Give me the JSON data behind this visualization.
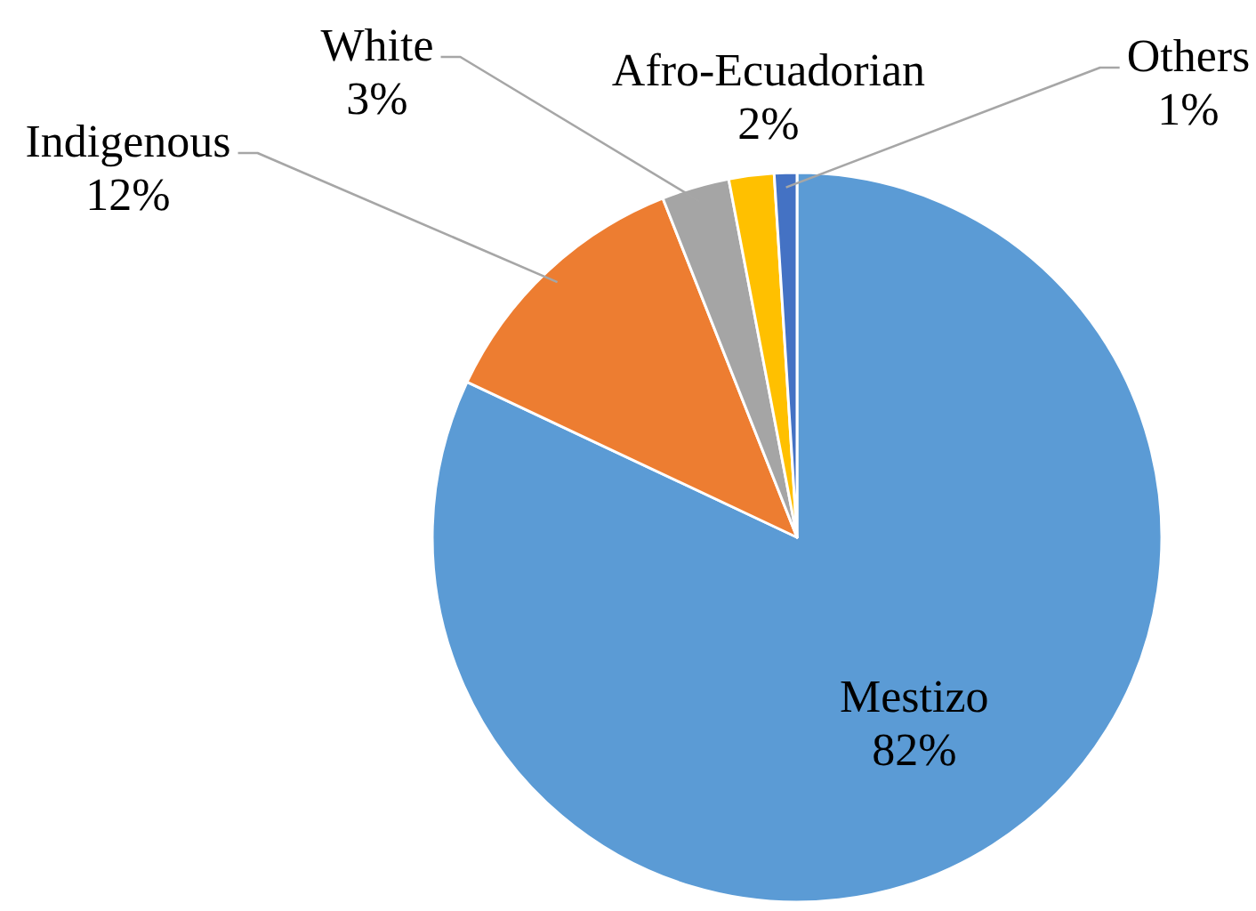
{
  "chart_data": {
    "type": "pie",
    "categories": [
      "Mestizo",
      "Indigenous",
      "White",
      "Afro-Ecuadorian",
      "Others"
    ],
    "values": [
      82,
      12,
      3,
      2,
      1
    ],
    "colors": [
      "#5b9bd5",
      "#ed7d31",
      "#a5a5a5",
      "#ffc000",
      "#4472c4"
    ],
    "value_labels": [
      "82%",
      "12%",
      "3%",
      "2%",
      "1%"
    ]
  }
}
